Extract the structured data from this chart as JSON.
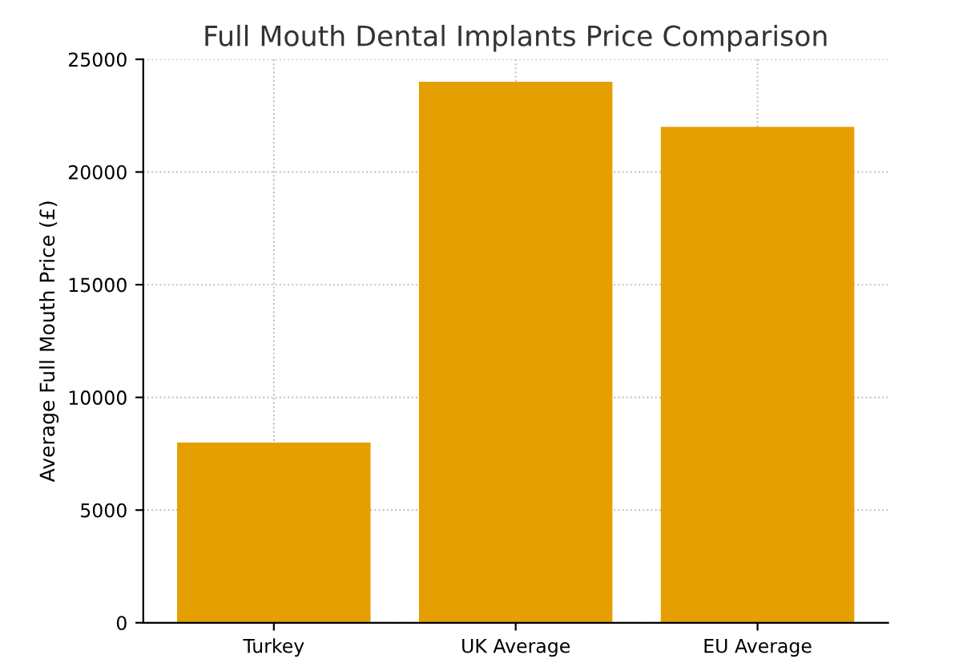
{
  "chart_data": {
    "type": "bar",
    "title": "Full Mouth Dental Implants Price Comparison",
    "ylabel": "Average Full Mouth Price (£)",
    "categories": [
      "Turkey",
      "UK Average",
      "EU Average"
    ],
    "values": [
      8000,
      24000,
      22000
    ],
    "color": "#e69f00",
    "ylim": [
      0,
      25000
    ],
    "yticks": [
      0,
      5000,
      10000,
      15000,
      20000,
      25000
    ],
    "grid": true
  }
}
